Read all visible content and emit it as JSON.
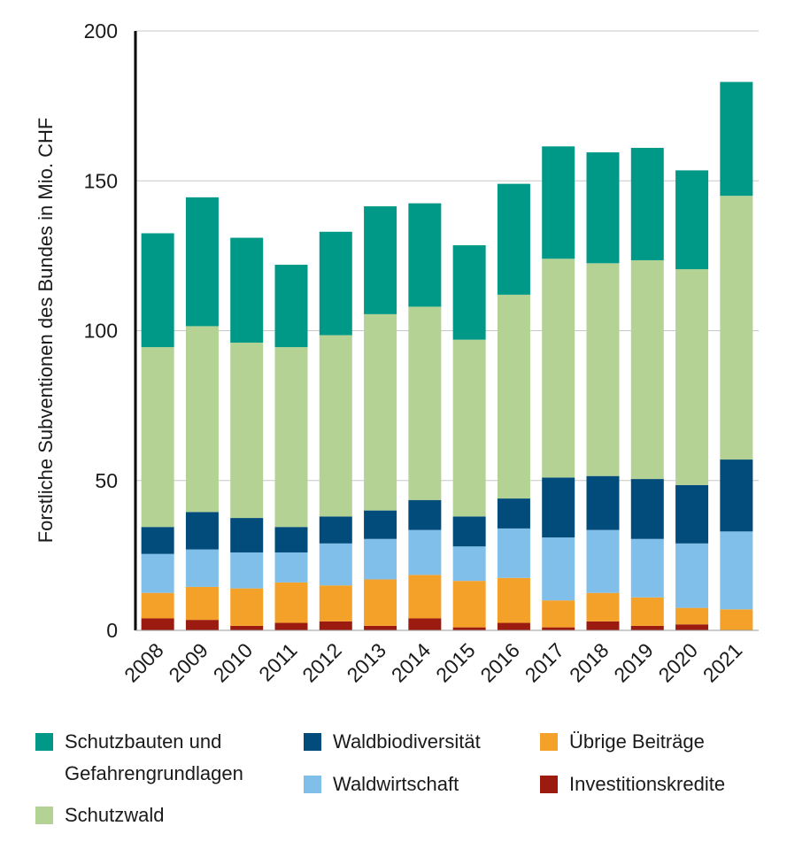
{
  "chart_data": {
    "type": "bar",
    "stacked": true,
    "ylabel": "Forstliche Subventionen des Bundes in Mio. CHF",
    "xlabel": "",
    "ylim": [
      0,
      200
    ],
    "yticks": [
      0,
      50,
      100,
      150,
      200
    ],
    "grid": true,
    "legend_position": "bottom",
    "categories": [
      "2008",
      "2009",
      "2010",
      "2011",
      "2012",
      "2013",
      "2014",
      "2015",
      "2016",
      "2017",
      "2018",
      "2019",
      "2020",
      "2021"
    ],
    "series": [
      {
        "name": "Investitionskredite",
        "color": "#9b1b10",
        "values": [
          4,
          3.5,
          1.5,
          2.5,
          3,
          1.5,
          4,
          1,
          2.5,
          1,
          3,
          1.5,
          2,
          0
        ]
      },
      {
        "name": "Übrige Beiträge",
        "color": "#f4a12a",
        "values": [
          8.5,
          11,
          12.5,
          13.5,
          12,
          15.5,
          14.5,
          15.5,
          15,
          9,
          9.5,
          9.5,
          5.5,
          7
        ]
      },
      {
        "name": "Waldwirtschaft",
        "color": "#7fbfea",
        "values": [
          13,
          12.5,
          12,
          10,
          14,
          13.5,
          15,
          11.5,
          16.5,
          21,
          21,
          19.5,
          21.5,
          26
        ]
      },
      {
        "name": "Waldbiodiversität",
        "color": "#024c7c",
        "values": [
          9,
          12.5,
          11.5,
          8.5,
          9,
          9.5,
          10,
          10,
          10,
          20,
          18,
          20,
          19.5,
          24
        ]
      },
      {
        "name": "Schutzwald",
        "color": "#b5d295",
        "values": [
          60,
          62,
          58.5,
          60,
          60.5,
          65.5,
          64.5,
          59,
          68,
          73,
          71,
          73,
          72,
          88
        ]
      },
      {
        "name": "Schutzbauten und Gefahrengrundlagen",
        "color": "#009987",
        "values": [
          38,
          43,
          35,
          27.5,
          34.5,
          36,
          34.5,
          31.5,
          37,
          37.5,
          37,
          37.5,
          33,
          38
        ]
      }
    ]
  },
  "legend": {
    "items": [
      {
        "label_lines": [
          "Schutzbauten und",
          "Gefahrengrundlagen"
        ],
        "color": "#009987"
      },
      {
        "label_lines": [
          "Schutzwald"
        ],
        "color": "#b5d295"
      },
      {
        "label_lines": [
          "Waldbiodiversität"
        ],
        "color": "#024c7c"
      },
      {
        "label_lines": [
          "Waldwirtschaft"
        ],
        "color": "#7fbfea"
      },
      {
        "label_lines": [
          "Übrige Beiträge"
        ],
        "color": "#f4a12a"
      },
      {
        "label_lines": [
          "Investitionskredite"
        ],
        "color": "#9b1b10"
      }
    ]
  }
}
